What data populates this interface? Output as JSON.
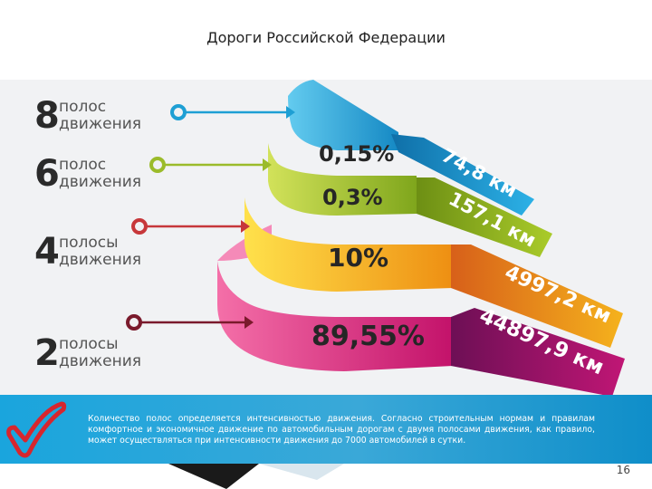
{
  "slide": {
    "title": "Дороги Российской Федерации",
    "page_number": "16"
  },
  "lanes": [
    {
      "number": "8",
      "line1": "полос",
      "line2": "движения",
      "percent": "0,15%",
      "length": "74,8 км",
      "color": "#1e9fd4"
    },
    {
      "number": "6",
      "line1": "полос",
      "line2": "движения",
      "percent": "0,3%",
      "length": "157,1 км",
      "color": "#9bbb2a"
    },
    {
      "number": "4",
      "line1": "полосы",
      "line2": "движения",
      "percent": "10%",
      "length": "4997,2 км",
      "color": "#f2a81c"
    },
    {
      "number": "2",
      "line1": "полосы",
      "line2": "движения",
      "percent": "89,55%",
      "length": "44897,9 км",
      "color": "#e0237a"
    }
  ],
  "footer": {
    "text": "Количество полос определяется интенсивностью движения. Согласно строительным нормам и правилам комфортное и экономичное движение по автомобильным дорогам с двумя полосами движения, как правило, может осуществляться при интенсивности движения до 7000 автомобилей в сутки."
  },
  "icons": {
    "footer_mark": "check-mark-icon",
    "connector": "ring-pointer-icon"
  },
  "chart_data": {
    "type": "stacked-tier",
    "title": "Дороги Российской Федерации",
    "categories": [
      "8 полос движения",
      "6 полос движения",
      "4 полосы движения",
      "2 полосы движения"
    ],
    "series": [
      {
        "name": "",
        "values": [
          0.15,
          0.3,
          10,
          89.55
        ]
      },
      {
        "name": "",
        "values": [
          74.8,
          157.1,
          4997.2,
          44897.9
        ]
      }
    ]
  }
}
